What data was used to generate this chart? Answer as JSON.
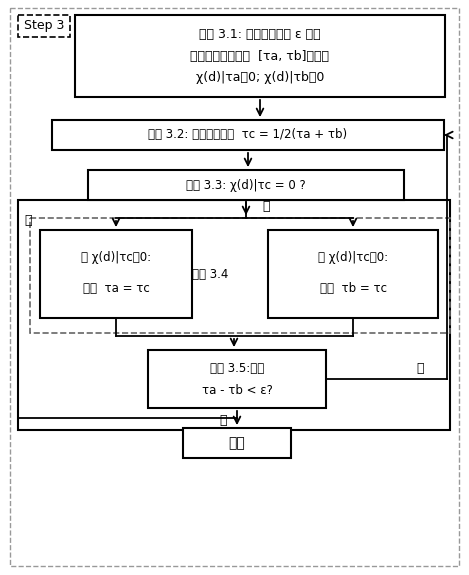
{
  "bg_color": "#ffffff",
  "outer_border_color": "#aaaaaa",
  "step3_label": "Step 3",
  "box1_line1": "步骤 3.1: 确定搜索精度 ε 和时",
  "box1_line2": "滞的初始搜索区间  [τa, τb]，其中",
  "box1_line3": "χ(d)|τa＜0; χ(d)|τb＞0",
  "box2_text": "步骤 3.2: 定义时滞变量  τc = 1/2(τa + τb)",
  "box3_text": "步骤 3.3: χ(d)|τc = 0 ?",
  "step34_label": "步骤 3.4",
  "box4a_line1": "当 χ(d)|τc＜0:",
  "box4a_line2": "定义  τa = τc",
  "box4b_line1": "当 χ(d)|τc＞0:",
  "box4b_line2": "定义  τb = τc",
  "box5_line1": "步骤 3.5:判断",
  "box5_line2": "τa - τb < ε?",
  "box6_text": "结束",
  "yes_label": "是",
  "no_label": "否"
}
